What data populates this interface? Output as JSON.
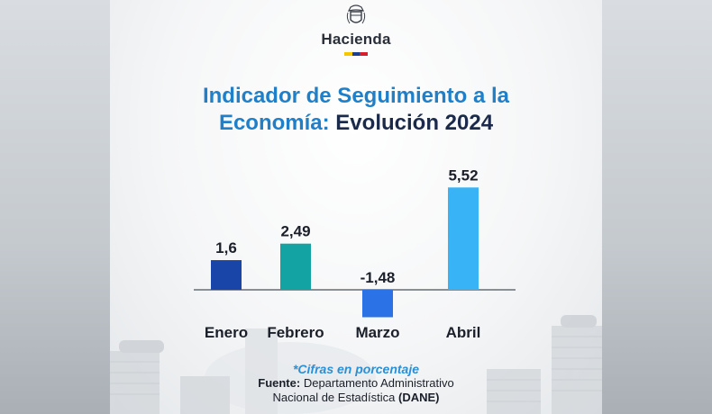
{
  "brand": {
    "name": "Hacienda"
  },
  "colors": {
    "flag": [
      "#f6c700",
      "#1d3f8f",
      "#d81e2c"
    ]
  },
  "title": {
    "line1": "Indicador de Seguimiento a la",
    "line2_prefix": "Economía:",
    "line2_suffix": "Evolución 2024"
  },
  "chart_data": {
    "type": "bar",
    "categories": [
      "Enero",
      "Febrero",
      "Marzo",
      "Abril"
    ],
    "values": [
      1.6,
      2.49,
      -1.48,
      5.52
    ],
    "value_labels": [
      "1,6",
      "2,49",
      "-1,48",
      "5,52"
    ],
    "colors": [
      "#1a45a8",
      "#14a3a3",
      "#2a72e6",
      "#38b4f6"
    ],
    "ylim": [
      -1.48,
      5.52
    ],
    "grid": false
  },
  "footer": {
    "note": "*Cifras en porcentaje",
    "source_label": "Fuente:",
    "source_line1": "Departamento Administrativo",
    "source_line2": "Nacional de Estadística",
    "source_abbr": "(DANE)"
  }
}
